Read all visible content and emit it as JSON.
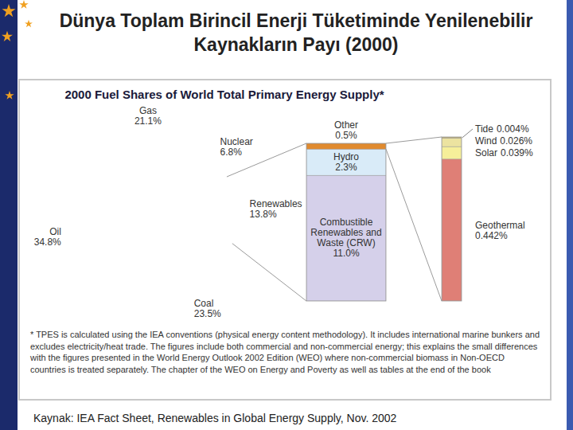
{
  "slide_title": "Dünya Toplam Birincil Enerji Tüketiminde Yenilenebilir Kaynakların Payı (2000)",
  "source": "Kaynak: IEA Fact Sheet, Renewables in Global Energy Supply, Nov. 2002",
  "chart_data": [
    {
      "type": "pie",
      "title": "2000 Fuel Shares of World Total Primary Energy Supply*",
      "categories": [
        "Gas",
        "Nuclear",
        "Renewables",
        "Coal",
        "Oil"
      ],
      "values": [
        21.1,
        6.8,
        13.8,
        23.5,
        34.8
      ],
      "value_labels": [
        "21.1%",
        "6.8%",
        "13.8%",
        "23.5%",
        "34.8%"
      ],
      "colors": [
        "#d44a63",
        "#fbf4b4",
        "#e9cf24",
        "#ecb4d2",
        "#b5d9a6"
      ],
      "data_labels": true,
      "footnote": "* TPES is calculated using the IEA conventions (physical energy content methodology). It includes international marine bunkers and excludes electricity/heat trade. The figures include both commercial and non-commercial energy; this explains the small differences with the figures presented in the World Energy Outlook 2002 Edition (WEO) where non-commercial biomass in Non-OECD countries is treated separately. The chapter of the WEO on Energy and Poverty as well as tables at the end of the book"
    },
    {
      "type": "bar",
      "stacked": true,
      "categories": [
        "Combustible Renewables and Waste (CRW)",
        "Hydro",
        "Other"
      ],
      "values": [
        11.0,
        2.3,
        0.5
      ],
      "value_labels": [
        "11.0%",
        "2.3%",
        "0.5%"
      ],
      "colors": [
        "#d5d0ea",
        "#d9ebf8",
        "#e08a2e"
      ],
      "ylim": [
        0,
        13.8
      ],
      "data_labels": true,
      "tick_labels": false
    },
    {
      "type": "bar",
      "stacked": true,
      "categories": [
        "Geothermal",
        "Solar",
        "Wind",
        "Tide"
      ],
      "values": [
        0.442,
        0.039,
        0.026,
        0.004
      ],
      "value_labels": [
        "0.442%",
        "0.039%",
        "0.026%",
        "0.004%"
      ],
      "colors": [
        "#df7f76",
        "#f6ef9a",
        "#ece3a0",
        "#c8b46a"
      ],
      "ylim": [
        0,
        0.511
      ],
      "data_labels": true,
      "tick_labels": false
    }
  ]
}
